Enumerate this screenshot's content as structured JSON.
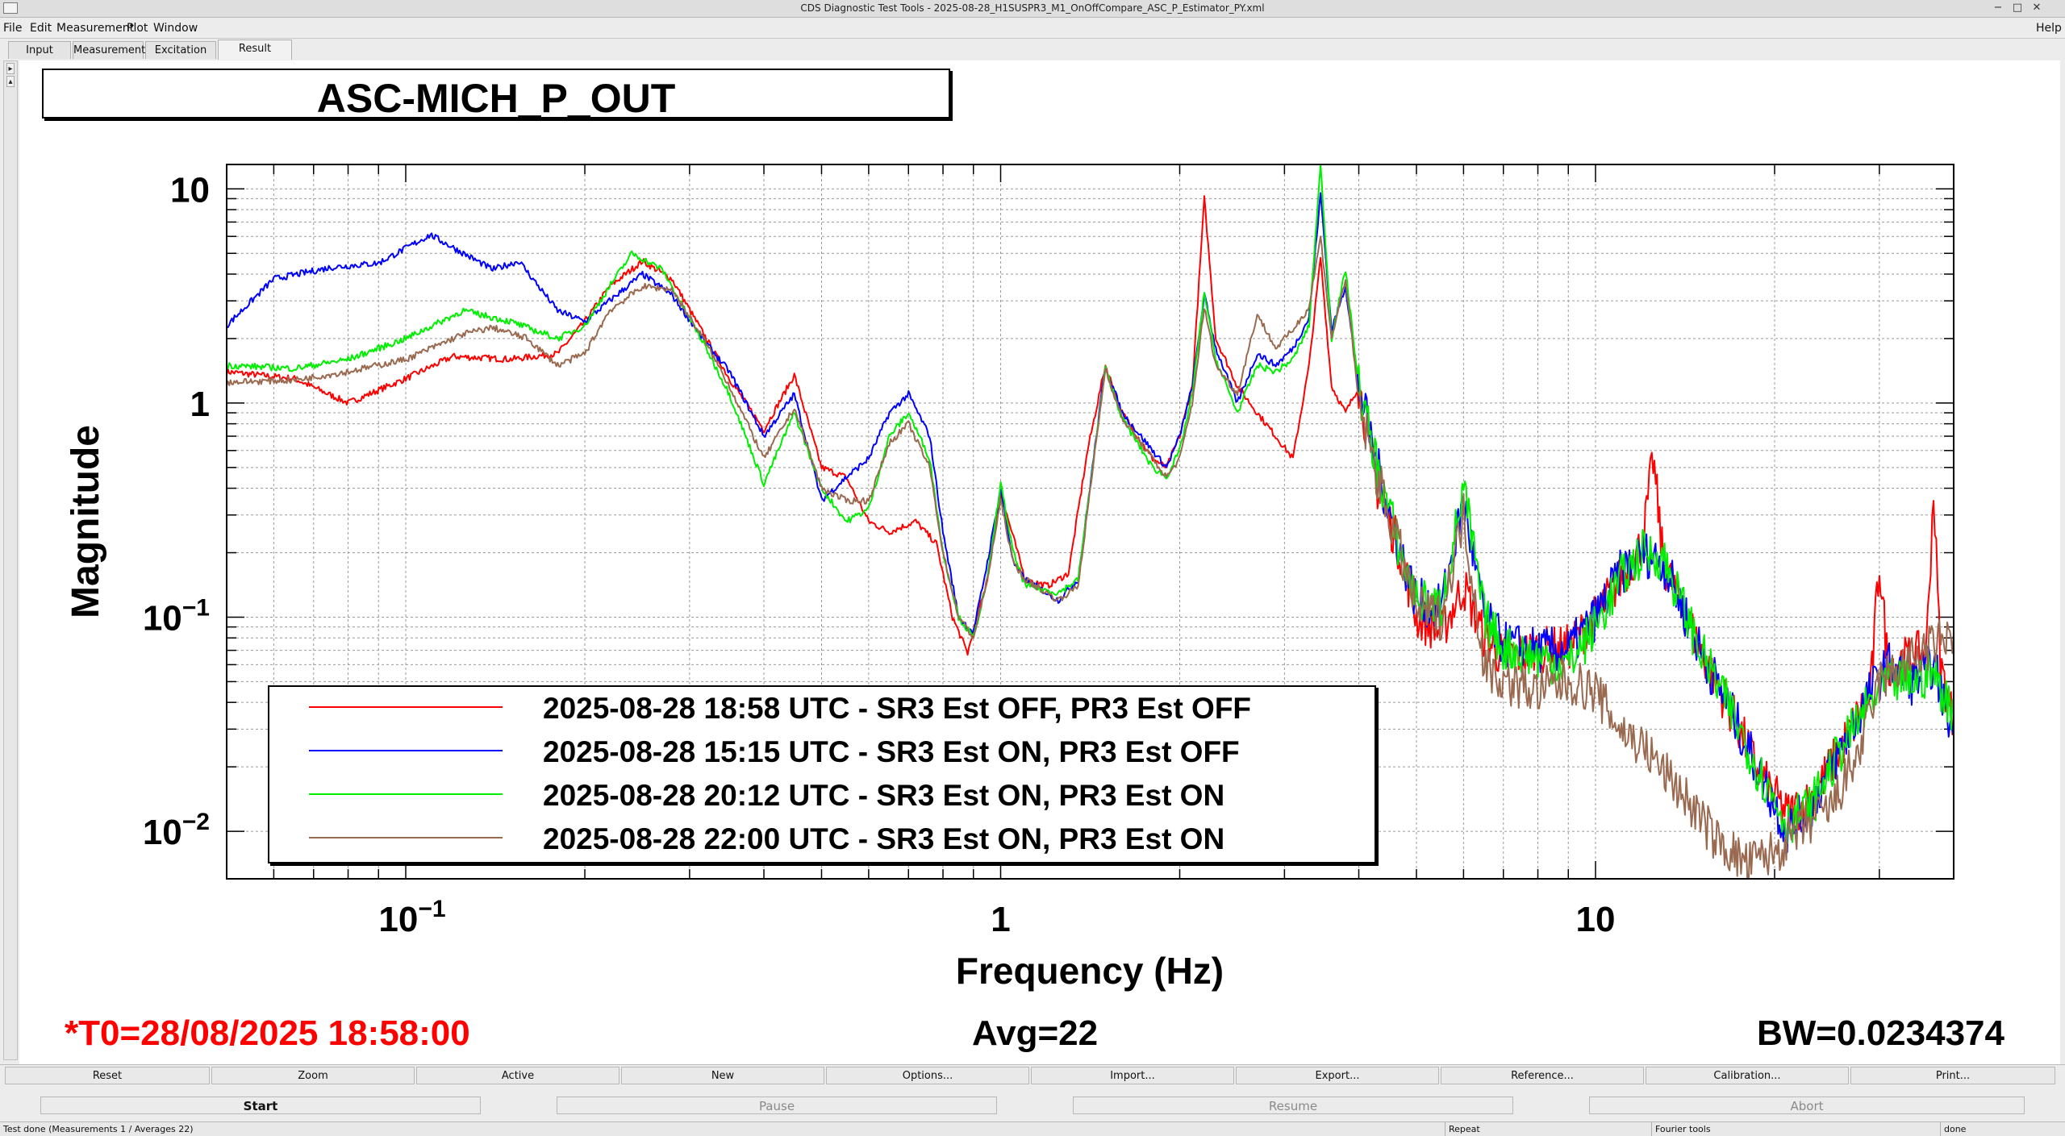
{
  "window": {
    "title": "CDS Diagnostic Test Tools - 2025-08-28_H1SUSPR3_M1_OnOffCompare_ASC_P_Estimator_PY.xml",
    "help_label": "Help"
  },
  "menu": [
    "File",
    "Edit",
    "Measurement",
    "Plot",
    "Window"
  ],
  "tabs": [
    "Input",
    "Measurement",
    "Excitation",
    "Result"
  ],
  "active_tab": "Result",
  "graph": {
    "title": "ASC-MICH_P_OUT",
    "t0": "*T0=28/08/2025 18:58:00",
    "avg": "Avg=22",
    "bw": "BW=0.0234374"
  },
  "colors": {
    "red": "#ff0000",
    "blue": "#0000ff",
    "green": "#00ee00",
    "brown": "#9a6a50",
    "t0_text": "#ff0000"
  },
  "chart_data": {
    "type": "line",
    "xlabel": "Frequency (Hz)",
    "ylabel": "Magnitude",
    "xscale": "log",
    "yscale": "log",
    "xlim": [
      0.05,
      40
    ],
    "ylim": [
      0.006,
      13
    ],
    "x_ticks": [
      {
        "value": 0.1,
        "label": "10",
        "exp": "−1"
      },
      {
        "value": 1,
        "label": "1",
        "exp": ""
      },
      {
        "value": 10,
        "label": "10",
        "exp": ""
      }
    ],
    "y_ticks": [
      {
        "value": 10,
        "label": "10",
        "exp": ""
      },
      {
        "value": 1,
        "label": "1",
        "exp": ""
      },
      {
        "value": 0.1,
        "label": "10",
        "exp": "−1"
      },
      {
        "value": 0.01,
        "label": "10",
        "exp": "−2"
      }
    ],
    "grid": true,
    "legend_position": "bottom-left",
    "series": [
      {
        "name": "2025-08-28 18:58 UTC - SR3 Est OFF, PR3 Est OFF",
        "color": "#ff0000",
        "points": [
          [
            0.05,
            1.4
          ],
          [
            0.065,
            1.3
          ],
          [
            0.08,
            1.0
          ],
          [
            0.1,
            1.3
          ],
          [
            0.12,
            1.65
          ],
          [
            0.15,
            1.6
          ],
          [
            0.18,
            1.7
          ],
          [
            0.2,
            2.4
          ],
          [
            0.22,
            3.5
          ],
          [
            0.25,
            4.6
          ],
          [
            0.28,
            3.8
          ],
          [
            0.32,
            2.0
          ],
          [
            0.35,
            1.3
          ],
          [
            0.4,
            0.75
          ],
          [
            0.45,
            1.35
          ],
          [
            0.5,
            0.5
          ],
          [
            0.55,
            0.45
          ],
          [
            0.6,
            0.28
          ],
          [
            0.65,
            0.25
          ],
          [
            0.72,
            0.28
          ],
          [
            0.78,
            0.22
          ],
          [
            0.83,
            0.1
          ],
          [
            0.88,
            0.068
          ],
          [
            0.95,
            0.15
          ],
          [
            1.0,
            0.38
          ],
          [
            1.1,
            0.15
          ],
          [
            1.2,
            0.14
          ],
          [
            1.3,
            0.16
          ],
          [
            1.4,
            0.6
          ],
          [
            1.5,
            1.5
          ],
          [
            1.6,
            0.9
          ],
          [
            1.8,
            0.55
          ],
          [
            1.9,
            0.5
          ],
          [
            2.0,
            0.7
          ],
          [
            2.1,
            1.2
          ],
          [
            2.2,
            9.0
          ],
          [
            2.3,
            2.0
          ],
          [
            2.5,
            1.2
          ],
          [
            2.7,
            0.9
          ],
          [
            2.9,
            0.7
          ],
          [
            3.1,
            0.55
          ],
          [
            3.3,
            1.5
          ],
          [
            3.45,
            4.8
          ],
          [
            3.6,
            1.2
          ],
          [
            3.8,
            0.9
          ],
          [
            4.0,
            1.2
          ],
          [
            4.3,
            0.4
          ],
          [
            4.7,
            0.2
          ],
          [
            5.0,
            0.1
          ],
          [
            5.5,
            0.085
          ],
          [
            6.0,
            0.14
          ],
          [
            6.5,
            0.08
          ],
          [
            7.0,
            0.065
          ],
          [
            8.0,
            0.07
          ],
          [
            9.0,
            0.072
          ],
          [
            10,
            0.1
          ],
          [
            11,
            0.15
          ],
          [
            12,
            0.22
          ],
          [
            12.5,
            0.55
          ],
          [
            13,
            0.18
          ],
          [
            15,
            0.07
          ],
          [
            17,
            0.035
          ],
          [
            19,
            0.018
          ],
          [
            21,
            0.012
          ],
          [
            23,
            0.014
          ],
          [
            26,
            0.025
          ],
          [
            29,
            0.045
          ],
          [
            30,
            0.18
          ],
          [
            31,
            0.06
          ],
          [
            34,
            0.065
          ],
          [
            36,
            0.07
          ],
          [
            37,
            0.4
          ],
          [
            38,
            0.06
          ],
          [
            40,
            0.032
          ]
        ]
      },
      {
        "name": "2025-08-28 15:15 UTC - SR3 Est ON, PR3 Est OFF",
        "color": "#0000ff",
        "points": [
          [
            0.05,
            2.3
          ],
          [
            0.06,
            3.8
          ],
          [
            0.075,
            4.3
          ],
          [
            0.09,
            4.5
          ],
          [
            0.11,
            6.1
          ],
          [
            0.125,
            5.0
          ],
          [
            0.14,
            4.2
          ],
          [
            0.155,
            4.6
          ],
          [
            0.18,
            2.7
          ],
          [
            0.2,
            2.4
          ],
          [
            0.22,
            3.0
          ],
          [
            0.25,
            4.0
          ],
          [
            0.28,
            3.2
          ],
          [
            0.32,
            1.9
          ],
          [
            0.35,
            1.4
          ],
          [
            0.4,
            0.7
          ],
          [
            0.45,
            1.1
          ],
          [
            0.5,
            0.35
          ],
          [
            0.55,
            0.45
          ],
          [
            0.6,
            0.55
          ],
          [
            0.65,
            0.9
          ],
          [
            0.7,
            1.1
          ],
          [
            0.76,
            0.7
          ],
          [
            0.8,
            0.25
          ],
          [
            0.85,
            0.1
          ],
          [
            0.9,
            0.085
          ],
          [
            0.95,
            0.18
          ],
          [
            1.0,
            0.4
          ],
          [
            1.05,
            0.18
          ],
          [
            1.1,
            0.15
          ],
          [
            1.25,
            0.12
          ],
          [
            1.35,
            0.15
          ],
          [
            1.5,
            1.5
          ],
          [
            1.6,
            0.9
          ],
          [
            1.8,
            0.6
          ],
          [
            1.9,
            0.5
          ],
          [
            2.0,
            0.7
          ],
          [
            2.1,
            1.2
          ],
          [
            2.2,
            3.2
          ],
          [
            2.3,
            1.8
          ],
          [
            2.5,
            1.0
          ],
          [
            2.7,
            1.7
          ],
          [
            2.9,
            1.5
          ],
          [
            3.1,
            1.8
          ],
          [
            3.3,
            2.5
          ],
          [
            3.45,
            9.5
          ],
          [
            3.6,
            2.2
          ],
          [
            3.8,
            3.5
          ],
          [
            4.0,
            1.2
          ],
          [
            4.3,
            0.5
          ],
          [
            4.7,
            0.2
          ],
          [
            5.0,
            0.12
          ],
          [
            5.5,
            0.11
          ],
          [
            6.0,
            0.35
          ],
          [
            6.5,
            0.1
          ],
          [
            7.0,
            0.075
          ],
          [
            8.0,
            0.07
          ],
          [
            9.0,
            0.07
          ],
          [
            10,
            0.1
          ],
          [
            11,
            0.16
          ],
          [
            12,
            0.2
          ],
          [
            13,
            0.18
          ],
          [
            15,
            0.07
          ],
          [
            17,
            0.035
          ],
          [
            19,
            0.018
          ],
          [
            21,
            0.01
          ],
          [
            23,
            0.013
          ],
          [
            26,
            0.025
          ],
          [
            29,
            0.045
          ],
          [
            31,
            0.06
          ],
          [
            34,
            0.05
          ],
          [
            37,
            0.06
          ],
          [
            40,
            0.028
          ]
        ]
      },
      {
        "name": "2025-08-28 20:12 UTC - SR3 Est ON, PR3 Est ON",
        "color": "#00ee00",
        "points": [
          [
            0.05,
            1.5
          ],
          [
            0.065,
            1.45
          ],
          [
            0.08,
            1.6
          ],
          [
            0.1,
            2.0
          ],
          [
            0.125,
            2.7
          ],
          [
            0.15,
            2.4
          ],
          [
            0.18,
            2.0
          ],
          [
            0.2,
            2.3
          ],
          [
            0.22,
            3.5
          ],
          [
            0.24,
            5.0
          ],
          [
            0.27,
            4.2
          ],
          [
            0.32,
            1.8
          ],
          [
            0.35,
            1.1
          ],
          [
            0.4,
            0.42
          ],
          [
            0.45,
            0.9
          ],
          [
            0.5,
            0.4
          ],
          [
            0.55,
            0.28
          ],
          [
            0.6,
            0.32
          ],
          [
            0.65,
            0.7
          ],
          [
            0.7,
            0.9
          ],
          [
            0.76,
            0.55
          ],
          [
            0.8,
            0.2
          ],
          [
            0.85,
            0.1
          ],
          [
            0.9,
            0.08
          ],
          [
            0.95,
            0.15
          ],
          [
            1.0,
            0.42
          ],
          [
            1.05,
            0.2
          ],
          [
            1.1,
            0.14
          ],
          [
            1.25,
            0.13
          ],
          [
            1.35,
            0.15
          ],
          [
            1.5,
            1.45
          ],
          [
            1.6,
            0.85
          ],
          [
            1.8,
            0.5
          ],
          [
            1.9,
            0.45
          ],
          [
            2.0,
            0.6
          ],
          [
            2.1,
            1.1
          ],
          [
            2.2,
            3.3
          ],
          [
            2.3,
            1.6
          ],
          [
            2.5,
            0.9
          ],
          [
            2.7,
            1.5
          ],
          [
            2.9,
            1.4
          ],
          [
            3.1,
            1.6
          ],
          [
            3.3,
            2.3
          ],
          [
            3.45,
            13
          ],
          [
            3.6,
            2.0
          ],
          [
            3.8,
            4.2
          ],
          [
            4.0,
            1.2
          ],
          [
            4.3,
            0.5
          ],
          [
            4.7,
            0.2
          ],
          [
            5.0,
            0.12
          ],
          [
            5.5,
            0.11
          ],
          [
            6.0,
            0.4
          ],
          [
            6.5,
            0.1
          ],
          [
            7.0,
            0.072
          ],
          [
            8.0,
            0.065
          ],
          [
            9.0,
            0.06
          ],
          [
            10,
            0.09
          ],
          [
            11,
            0.15
          ],
          [
            12,
            0.2
          ],
          [
            13,
            0.19
          ],
          [
            15,
            0.07
          ],
          [
            17,
            0.035
          ],
          [
            19,
            0.018
          ],
          [
            21,
            0.011
          ],
          [
            23,
            0.013
          ],
          [
            26,
            0.025
          ],
          [
            29,
            0.04
          ],
          [
            31,
            0.05
          ],
          [
            34,
            0.05
          ],
          [
            37,
            0.055
          ],
          [
            40,
            0.035
          ]
        ]
      },
      {
        "name": "2025-08-28 22:00 UTC - SR3 Est ON, PR3 Est ON",
        "color": "#9a6a50",
        "points": [
          [
            0.05,
            1.25
          ],
          [
            0.065,
            1.28
          ],
          [
            0.08,
            1.4
          ],
          [
            0.1,
            1.6
          ],
          [
            0.125,
            2.1
          ],
          [
            0.14,
            2.25
          ],
          [
            0.16,
            2.0
          ],
          [
            0.18,
            1.5
          ],
          [
            0.2,
            1.7
          ],
          [
            0.22,
            2.7
          ],
          [
            0.25,
            3.5
          ],
          [
            0.28,
            3.4
          ],
          [
            0.32,
            1.9
          ],
          [
            0.35,
            1.2
          ],
          [
            0.4,
            0.55
          ],
          [
            0.45,
            0.95
          ],
          [
            0.5,
            0.4
          ],
          [
            0.55,
            0.35
          ],
          [
            0.6,
            0.35
          ],
          [
            0.65,
            0.65
          ],
          [
            0.7,
            0.8
          ],
          [
            0.76,
            0.5
          ],
          [
            0.8,
            0.2
          ],
          [
            0.85,
            0.1
          ],
          [
            0.9,
            0.08
          ],
          [
            0.95,
            0.15
          ],
          [
            1.0,
            0.35
          ],
          [
            1.05,
            0.18
          ],
          [
            1.1,
            0.15
          ],
          [
            1.25,
            0.12
          ],
          [
            1.35,
            0.14
          ],
          [
            1.5,
            1.45
          ],
          [
            1.6,
            0.85
          ],
          [
            1.8,
            0.55
          ],
          [
            1.9,
            0.45
          ],
          [
            2.0,
            0.55
          ],
          [
            2.1,
            1.0
          ],
          [
            2.2,
            2.8
          ],
          [
            2.3,
            1.5
          ],
          [
            2.5,
            1.1
          ],
          [
            2.7,
            2.6
          ],
          [
            2.9,
            1.8
          ],
          [
            3.1,
            2.2
          ],
          [
            3.3,
            2.8
          ],
          [
            3.45,
            6.0
          ],
          [
            3.6,
            2.0
          ],
          [
            3.8,
            3.8
          ],
          [
            4.0,
            1.0
          ],
          [
            4.3,
            0.45
          ],
          [
            4.7,
            0.2
          ],
          [
            5.0,
            0.11
          ],
          [
            5.5,
            0.1
          ],
          [
            6.0,
            0.3
          ],
          [
            6.5,
            0.06
          ],
          [
            7.0,
            0.05
          ],
          [
            8.0,
            0.045
          ],
          [
            9.0,
            0.05
          ],
          [
            10,
            0.045
          ],
          [
            11,
            0.03
          ],
          [
            12,
            0.025
          ],
          [
            14,
            0.015
          ],
          [
            16,
            0.009
          ],
          [
            18,
            0.007
          ],
          [
            20,
            0.008
          ],
          [
            22,
            0.01
          ],
          [
            25,
            0.013
          ],
          [
            28,
            0.025
          ],
          [
            30,
            0.05
          ],
          [
            33,
            0.06
          ],
          [
            36,
            0.07
          ],
          [
            40,
            0.085
          ]
        ]
      }
    ]
  },
  "bottom_buttons": [
    "Reset",
    "Zoom",
    "Active",
    "New",
    "Options...",
    "Import...",
    "Export...",
    "Reference...",
    "Calibration...",
    "Print..."
  ],
  "control_buttons": [
    {
      "label": "Start",
      "enabled": true
    },
    {
      "label": "Pause",
      "enabled": false
    },
    {
      "label": "Resume",
      "enabled": false
    },
    {
      "label": "Abort",
      "enabled": false
    }
  ],
  "status": {
    "message": "Test done (Measurements 1 / Averages 22)",
    "repeat": "Repeat",
    "tools": "Fourier tools",
    "state": "done"
  }
}
